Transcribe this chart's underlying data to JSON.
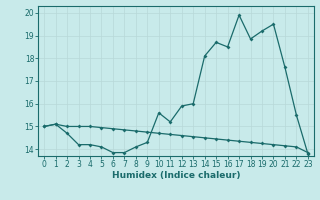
{
  "xlabel": "Humidex (Indice chaleur)",
  "ylabel": "",
  "bg_color": "#c8eaea",
  "line_color": "#1a6b6b",
  "grid_color": "#b8d8d8",
  "xlim": [
    -0.5,
    23.5
  ],
  "ylim": [
    13.7,
    20.3
  ],
  "yticks": [
    14,
    15,
    16,
    17,
    18,
    19,
    20
  ],
  "xticks": [
    0,
    1,
    2,
    3,
    4,
    5,
    6,
    7,
    8,
    9,
    10,
    11,
    12,
    13,
    14,
    15,
    16,
    17,
    18,
    19,
    20,
    21,
    22,
    23
  ],
  "line1_x": [
    0,
    1,
    2,
    3,
    4,
    5,
    6,
    7,
    8,
    9,
    10,
    11,
    12,
    13,
    14,
    15,
    16,
    17,
    18,
    19,
    20,
    21,
    22,
    23
  ],
  "line1_y": [
    15.0,
    15.1,
    14.7,
    14.2,
    14.2,
    14.1,
    13.85,
    13.85,
    14.1,
    14.3,
    15.6,
    15.2,
    15.9,
    16.0,
    18.1,
    18.7,
    18.5,
    19.9,
    18.85,
    19.2,
    19.5,
    17.6,
    15.5,
    13.8
  ],
  "line2_x": [
    0,
    1,
    2,
    3,
    4,
    5,
    6,
    7,
    8,
    9,
    10,
    11,
    12,
    13,
    14,
    15,
    16,
    17,
    18,
    19,
    20,
    21,
    22,
    23
  ],
  "line2_y": [
    15.0,
    15.1,
    15.0,
    15.0,
    15.0,
    14.95,
    14.9,
    14.85,
    14.8,
    14.75,
    14.7,
    14.65,
    14.6,
    14.55,
    14.5,
    14.45,
    14.4,
    14.35,
    14.3,
    14.25,
    14.2,
    14.15,
    14.1,
    13.85
  ],
  "tick_fontsize": 5.5,
  "xlabel_fontsize": 6.5
}
